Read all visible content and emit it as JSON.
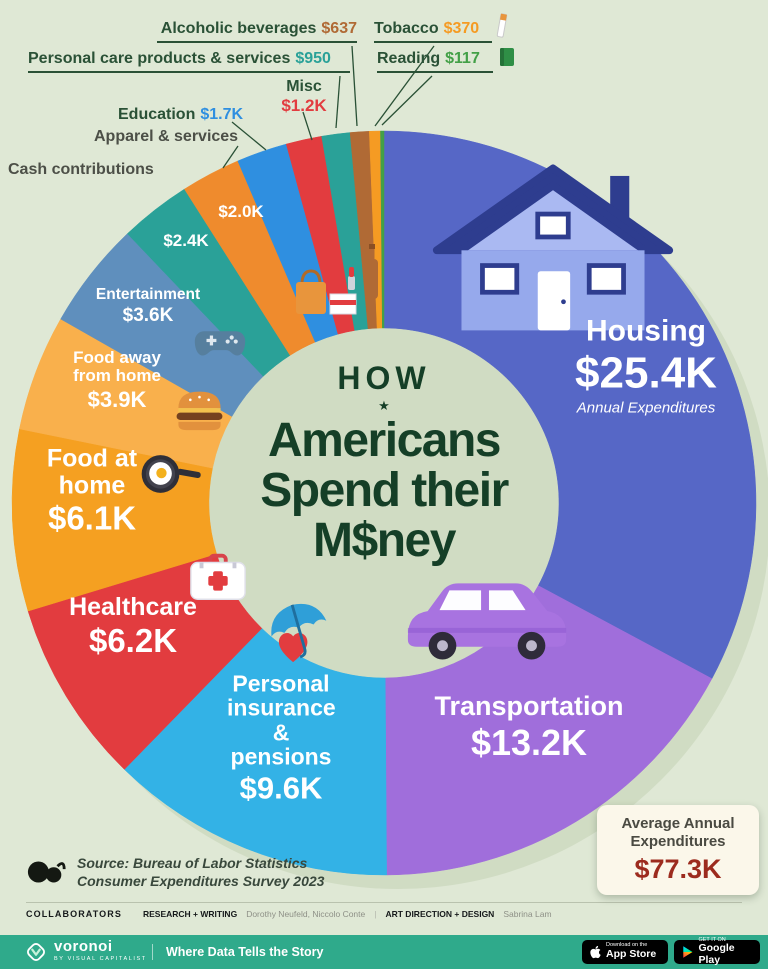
{
  "page": {
    "background": "#dfe8d5",
    "footer_color": "#2faa8b",
    "title_color": "#153f27"
  },
  "title": {
    "kicker": "HOW",
    "star": "★",
    "line1": "Americans",
    "line2": "Spend their",
    "money_pre": "M",
    "money_symbol": "$",
    "money_post": "ney"
  },
  "chart_data": {
    "type": "pie",
    "title": "How Americans Spend their Money",
    "layout": "donut",
    "start_angle": "top",
    "direction": "clockwise",
    "inner_radius_ratio": 0.47,
    "unit": "USD, annual expenditures, 2023",
    "total": {
      "label": "Average Annual Expenditures",
      "value": 77.3,
      "value_label": "$77.3K"
    },
    "segments": [
      {
        "label": "Housing",
        "value": 25.4,
        "value_label": "$25.4K",
        "sublabel": "Annual Expenditures",
        "color": "#5667c6"
      },
      {
        "label": "Transportation",
        "value": 13.2,
        "value_label": "$13.2K",
        "color": "#a06edb"
      },
      {
        "label": "Personal insurance & pensions",
        "value": 9.6,
        "value_label": "$9.6K",
        "color": "#33b2e6"
      },
      {
        "label": "Healthcare",
        "value": 6.2,
        "value_label": "$6.2K",
        "color": "#e23c3f"
      },
      {
        "label": "Food at home",
        "value": 6.1,
        "value_label": "$6.1K",
        "color": "#f5a021"
      },
      {
        "label": "Food away from home",
        "value": 3.9,
        "value_label": "$3.9K",
        "color": "#f9b04c"
      },
      {
        "label": "Entertainment",
        "value": 3.6,
        "value_label": "$3.6K",
        "color": "#5f8fbd"
      },
      {
        "label": "Cash contributions",
        "value": 2.4,
        "value_label": "$2.4K",
        "color": "#2aa198"
      },
      {
        "label": "Apparel & services",
        "value": 2.0,
        "value_label": "$2.0K",
        "color": "#ef8b2d"
      },
      {
        "label": "Education",
        "value": 1.7,
        "value_label": "$1.7K",
        "color": "#2f8fe0"
      },
      {
        "label": "Misc",
        "value": 1.2,
        "value_label": "$1.2K",
        "color": "#e23c3f"
      },
      {
        "label": "Personal care products & services",
        "value": 0.95,
        "value_label": "$950",
        "color": "#2aa198"
      },
      {
        "label": "Alcoholic beverages",
        "value": 0.637,
        "value_label": "$637",
        "color": "#b06a35"
      },
      {
        "label": "Tobacco",
        "value": 0.37,
        "value_label": "$370",
        "color": "#f59b23"
      },
      {
        "label": "Reading",
        "value": 0.117,
        "value_label": "$117",
        "color": "#43a047"
      }
    ]
  },
  "average_box": {
    "line1": "Average Annual",
    "line2": "Expenditures",
    "value": "$77.3K",
    "value_color": "#9c2b1e"
  },
  "source": {
    "line1": "Source: Bureau of Labor Statistics",
    "line2": "Consumer Expenditures Survey 2023"
  },
  "collaborators": {
    "heading": "COLLABORATORS",
    "role1": "RESEARCH + WRITING",
    "names1": "Dorothy Neufeld, Niccolo Conte",
    "divider": "|",
    "role2": "ART DIRECTION + DESIGN",
    "names2": "Sabrina Lam"
  },
  "footer": {
    "brand": "voronoi",
    "brand_sub": "BY VISUAL CAPITALIST",
    "tagline": "Where Data Tells the Story",
    "app_store": {
      "line1": "Download on the",
      "line2": "App Store"
    },
    "google_play": {
      "line1": "GET IT ON",
      "line2": "Google Play"
    }
  },
  "icons": [
    "house-icon",
    "car-icon",
    "game-controller-icon",
    "burger-icon",
    "fried-egg-pan-icon",
    "first-aid-kit-icon",
    "umbrella-heart-icon",
    "shopping-bag-icon",
    "gift-box-icon",
    "bottle-icon",
    "lipstick-icon",
    "cigarette-icon",
    "book-icon",
    "star-icon",
    "dollar-sign-icon",
    "apple-icon",
    "google-play-icon",
    "voronoi-logo-icon",
    "visual-capitalist-logo-icon"
  ]
}
